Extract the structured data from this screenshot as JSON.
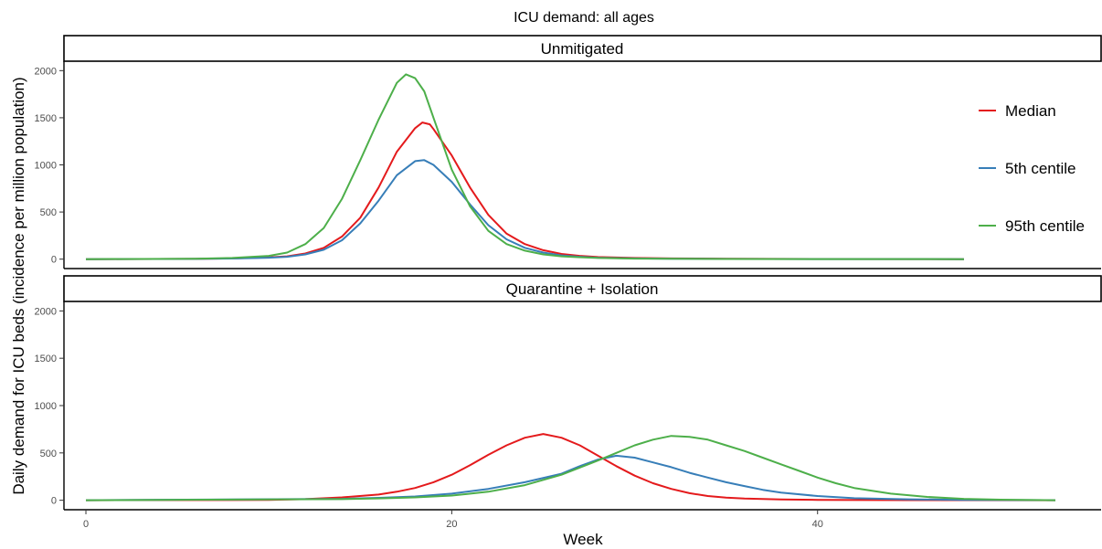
{
  "chart_data": {
    "type": "line",
    "title": "ICU demand: all ages",
    "xlabel": "Week",
    "ylabel": "Daily demand for ICU beds (incidence per million population)",
    "xlim": [
      -1.2,
      55.5
    ],
    "ylim": [
      -100,
      2100
    ],
    "x_ticks": [
      0,
      20,
      40
    ],
    "y_ticks": [
      0,
      500,
      1000,
      1500,
      2000
    ],
    "grid": false,
    "legend_position": "right",
    "colors": {
      "Median": "#e41a1c",
      "5th centile": "#377eb8",
      "95th centile": "#4daf4a"
    },
    "panels": [
      {
        "label": "Unmitigated",
        "series": [
          {
            "name": "Median",
            "x": [
              0,
              6,
              8,
              10,
              11,
              12,
              13,
              14,
              15,
              16,
              17,
              18,
              18.4,
              18.8,
              19,
              20,
              21,
              22,
              23,
              24,
              25,
              26,
              27,
              28,
              30,
              32,
              35,
              40,
              48
            ],
            "y": [
              0,
              3,
              8,
              18,
              30,
              60,
              120,
              240,
              440,
              760,
              1140,
              1390,
              1450,
              1430,
              1380,
              1100,
              760,
              470,
              270,
              160,
              95,
              55,
              35,
              22,
              12,
              8,
              5,
              2,
              0
            ]
          },
          {
            "name": "5th centile",
            "x": [
              0,
              6,
              8,
              10,
              11,
              12,
              13,
              14,
              15,
              16,
              17,
              18,
              18.5,
              19,
              20,
              21,
              22,
              23,
              24,
              25,
              26,
              27,
              28,
              30,
              32,
              35,
              40,
              48
            ],
            "y": [
              0,
              3,
              7,
              15,
              25,
              50,
              100,
              200,
              380,
              620,
              890,
              1040,
              1050,
              1000,
              820,
              580,
              360,
              210,
              120,
              70,
              40,
              25,
              15,
              8,
              5,
              3,
              1,
              0
            ]
          },
          {
            "name": "95th centile",
            "x": [
              0,
              6,
              8,
              10,
              11,
              12,
              13,
              14,
              15,
              16,
              17,
              17.5,
              18,
              18.5,
              19,
              20,
              21,
              22,
              23,
              24,
              25,
              26,
              27,
              28,
              30,
              32,
              35,
              40,
              48
            ],
            "y": [
              0,
              5,
              12,
              35,
              70,
              160,
              330,
              640,
              1050,
              1480,
              1870,
              1960,
              1920,
              1780,
              1500,
              950,
              560,
              300,
              160,
              90,
              50,
              30,
              20,
              12,
              6,
              4,
              2,
              1,
              0
            ]
          }
        ]
      },
      {
        "label": "Quarantine + Isolation",
        "series": [
          {
            "name": "Median",
            "x": [
              0,
              10,
              12,
              14,
              16,
              17,
              18,
              19,
              20,
              21,
              22,
              23,
              24,
              25,
              26,
              27,
              28,
              29,
              30,
              31,
              32,
              33,
              34,
              35,
              36,
              38,
              40,
              45,
              53
            ],
            "y": [
              0,
              3,
              12,
              30,
              60,
              90,
              130,
              190,
              270,
              370,
              480,
              580,
              660,
              700,
              660,
              580,
              470,
              360,
              260,
              180,
              120,
              75,
              45,
              28,
              18,
              8,
              4,
              1,
              0
            ]
          },
          {
            "name": "5th centile",
            "x": [
              0,
              14,
              16,
              18,
              20,
              22,
              24,
              26,
              27,
              28,
              29,
              30,
              31,
              32,
              33,
              34,
              35,
              36,
              37,
              38,
              40,
              42,
              45,
              48,
              53
            ],
            "y": [
              0,
              15,
              25,
              40,
              70,
              120,
              190,
              280,
              360,
              430,
              470,
              450,
              400,
              350,
              290,
              240,
              190,
              150,
              110,
              80,
              45,
              22,
              10,
              4,
              0
            ]
          },
          {
            "name": "95th centile",
            "x": [
              0,
              14,
              16,
              18,
              20,
              22,
              24,
              26,
              28,
              29,
              30,
              31,
              32,
              33,
              34,
              35,
              36,
              37,
              38,
              39,
              40,
              41,
              42,
              44,
              46,
              48,
              50,
              53
            ],
            "y": [
              0,
              12,
              20,
              30,
              50,
              90,
              160,
              270,
              420,
              500,
              580,
              640,
              680,
              670,
              640,
              580,
              520,
              450,
              380,
              310,
              240,
              180,
              130,
              70,
              35,
              15,
              6,
              0
            ]
          }
        ]
      }
    ]
  }
}
